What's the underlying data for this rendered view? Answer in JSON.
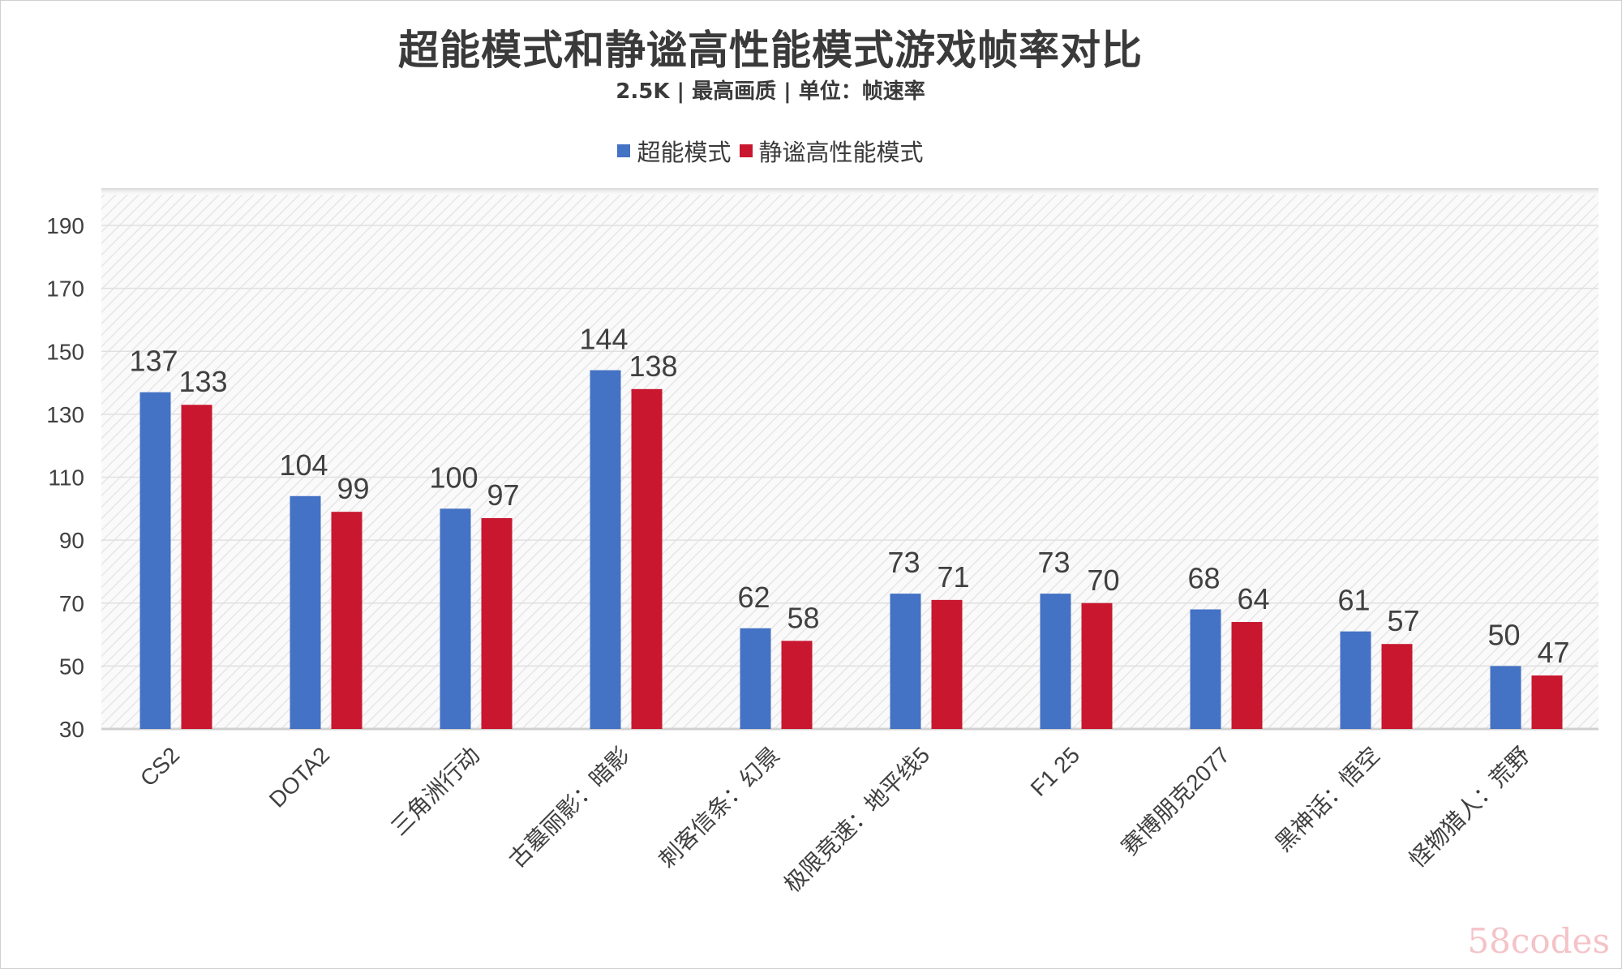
{
  "chart_data": {
    "type": "bar",
    "title": "超能模式和静谧高性能模式游戏帧率对比",
    "subtitle": "2.5K | 最高画质 | 单位：帧速率",
    "xlabel": "",
    "ylabel": "",
    "ylim": [
      30,
      190
    ],
    "yticks": [
      30,
      50,
      70,
      90,
      110,
      130,
      150,
      170,
      190
    ],
    "grid": true,
    "legend_position": "top-center",
    "categories": [
      "CS2",
      "DOTA2",
      "三角洲行动",
      "古墓丽影：暗影",
      "刺客信条：幻景",
      "极限竞速：地平线5",
      "F1 25",
      "赛博朋克2077",
      "黑神话：悟空",
      "怪物猎人：荒野"
    ],
    "series": [
      {
        "name": "超能模式",
        "color": "#4472c4",
        "values": [
          137,
          104,
          100,
          144,
          62,
          73,
          73,
          68,
          61,
          50
        ]
      },
      {
        "name": "静谧高性能模式",
        "color": "#c8172f",
        "values": [
          133,
          99,
          97,
          138,
          58,
          71,
          70,
          64,
          57,
          47
        ]
      }
    ]
  },
  "watermark": "58codes"
}
